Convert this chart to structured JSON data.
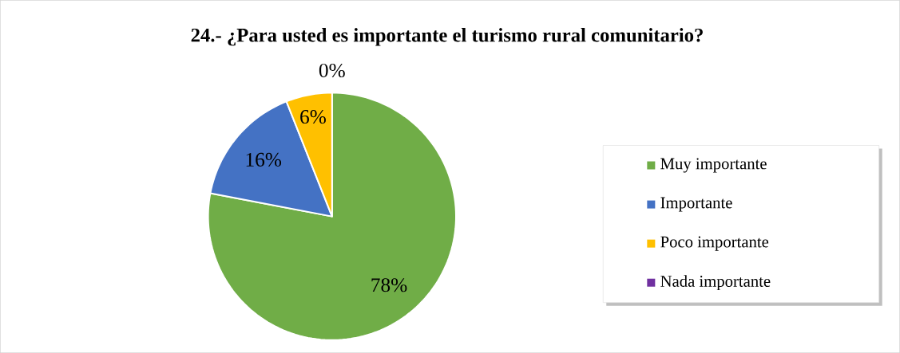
{
  "chart_data": {
    "type": "pie",
    "title": "24.- ¿Para usted es importante el turismo rural comunitario?",
    "categories": [
      "Muy importante",
      "Importante",
      "Poco importante",
      "Nada importante"
    ],
    "values": [
      78,
      16,
      6,
      0
    ],
    "value_labels": [
      "78%",
      "16%",
      "6%",
      "0%"
    ],
    "colors": [
      "#70ad47",
      "#4472c4",
      "#ffc000",
      "#7030a0"
    ],
    "legend": "right"
  }
}
